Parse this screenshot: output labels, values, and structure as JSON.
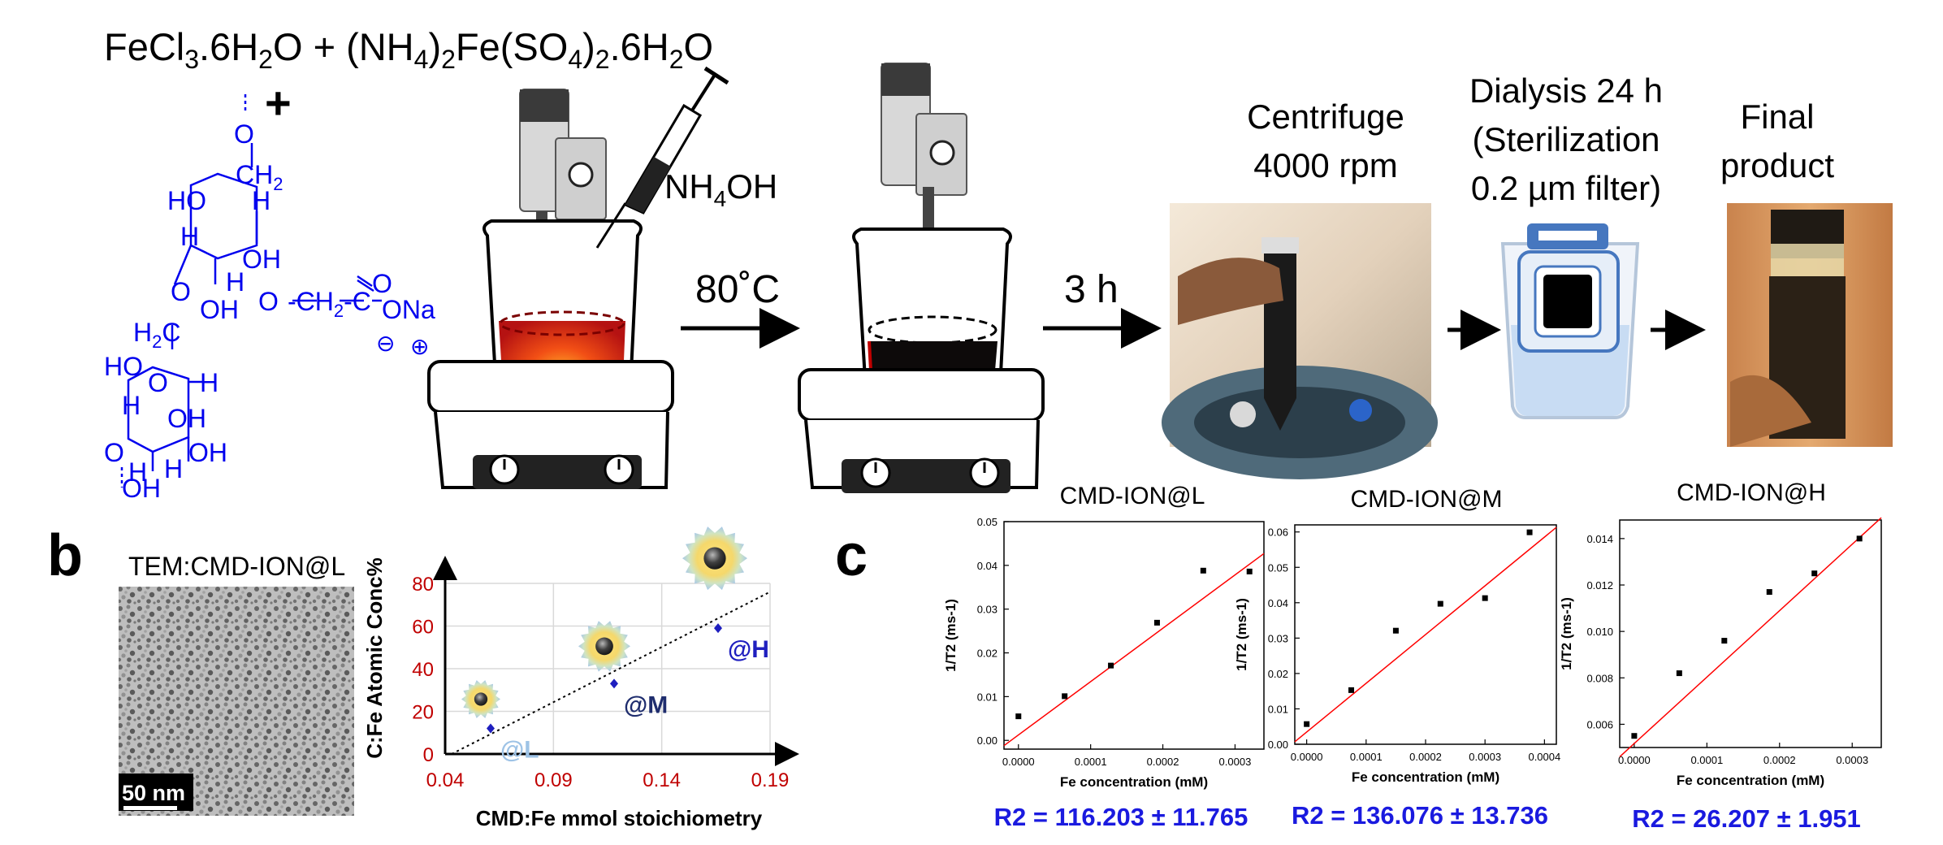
{
  "reagents": {
    "fecl3": "FeCl3.6H2O",
    "plus": "+",
    "mohr_salt": "(NH4)2Fe(SO4)2.6H2O"
  },
  "cmd_structure": {
    "o_top": "O",
    "ch2": "CH2",
    "ho": "HO",
    "h_a": "H",
    "h_b": "H",
    "oh_a": "OH",
    "o_ring": "O",
    "oh_b": "OH",
    "h_c": "H",
    "o_link": "O",
    "ch2_link": "CH2",
    "c_carb": "C",
    "o_dbl": "O",
    "ona": "ONa",
    "minus": "⊖",
    "plusch": "⊕",
    "h2c": "H2C",
    "h_d": "H",
    "ho_b": "HO",
    "o_ring2": "O",
    "h_e": "H",
    "h_f": "H",
    "oh_c": "OH",
    "o_bot": "O",
    "h_g": "H",
    "oh_d": "OH",
    "oh_e": "OH"
  },
  "steps": {
    "nh4oh": "NH4OH",
    "temp": "80˚C",
    "time": "3 h",
    "centrifuge": [
      "Centrifuge",
      "4000 rpm"
    ],
    "dialysis": [
      "Dialysis 24 h",
      "(Sterilization",
      "0.2 µm filter)"
    ],
    "final": [
      "Final",
      "product"
    ]
  },
  "panel_b": {
    "letter": "b",
    "tem_title": "TEM:CMD-ION@L",
    "scale_bar": "50 nm"
  },
  "panel_c": {
    "letter": "c"
  },
  "colors": {
    "blue_struct": "#0000ee",
    "red_axis": "#c00000",
    "fit_red": "#ff0000",
    "r2_blue": "#1a1adf",
    "navy": "#1f2d6e",
    "lightblue": "#9ec3e6"
  },
  "chart_data": [
    {
      "type": "scatter",
      "xlabel": "CMD:Fe mmol stoichiometry",
      "ylabel": "C:Fe Atomic Conc%",
      "xlim": [
        0.04,
        0.19
      ],
      "ylim": [
        0,
        80
      ],
      "x_ticks": [
        "0.04",
        "0.09",
        "0.14",
        "0.19"
      ],
      "y_ticks": [
        "0",
        "20",
        "40",
        "60",
        "80"
      ],
      "points": [
        {
          "x": 0.061,
          "y": 12,
          "label": "@L"
        },
        {
          "x": 0.118,
          "y": 33,
          "label": "@M"
        },
        {
          "x": 0.166,
          "y": 59,
          "label": "@H"
        }
      ],
      "trendline": "dotted"
    },
    {
      "type": "scatter",
      "title": "CMD-ION@L",
      "xlabel": "Fe concentration (mM)",
      "ylabel": "1/T2 (ms-1)",
      "xlim": [
        -2e-05,
        0.00034
      ],
      "ylim": [
        -0.002,
        0.05
      ],
      "x_ticks": [
        "0.0000",
        "0.0001",
        "0.0002",
        "0.0003"
      ],
      "y_ticks": [
        "0.00",
        "0.01",
        "0.02",
        "0.03",
        "0.04",
        "0.05"
      ],
      "x": [
        0.0,
        6.4e-05,
        0.000128,
        0.000192,
        0.000256,
        0.00032
      ],
      "y": [
        0.0055,
        0.0101,
        0.0171,
        0.0269,
        0.0388,
        0.0386
      ],
      "fit": {
        "x": [
          -2e-05,
          0.00034
        ],
        "y": [
          -0.0012,
          0.0427
        ]
      },
      "r2_text": "R2 = 116.203 ± 11.765"
    },
    {
      "type": "scatter",
      "title": "CMD-ION@M",
      "xlabel": "Fe concentration (mM)",
      "ylabel": "1/T2 (ms-1)",
      "xlim": [
        -2e-05,
        0.00042
      ],
      "ylim": [
        0.0,
        0.062
      ],
      "x_ticks": [
        "0.0000",
        "0.0001",
        "0.0002",
        "0.0003",
        "0.0004"
      ],
      "y_ticks": [
        "0.00",
        "0.01",
        "0.02",
        "0.03",
        "0.04",
        "0.05",
        "0.06"
      ],
      "x": [
        0.0,
        7.5e-05,
        0.00015,
        0.000225,
        0.0003,
        0.000375
      ],
      "y": [
        0.0057,
        0.0153,
        0.0321,
        0.0397,
        0.0413,
        0.0599
      ],
      "fit": {
        "x": [
          -2e-05,
          0.00042
        ],
        "y": [
          0.0007,
          0.0613
        ]
      },
      "r2_text": "R2 = 136.076 ± 13.736"
    },
    {
      "type": "scatter",
      "title": "CMD-ION@H",
      "xlabel": "Fe concentration (mM)",
      "ylabel": "1/T2 (ms-1)",
      "xlim": [
        -2e-05,
        0.00034
      ],
      "ylim": [
        0.005,
        0.0148
      ],
      "x_ticks": [
        "0.0000",
        "0.0001",
        "0.0002",
        "0.0003"
      ],
      "y_ticks": [
        "0.006",
        "0.008",
        "0.010",
        "0.012",
        "0.014"
      ],
      "x": [
        0.0,
        6.2e-05,
        0.000124,
        0.000186,
        0.000248,
        0.00031
      ],
      "y": [
        0.0055,
        0.0082,
        0.0096,
        0.0117,
        0.0125,
        0.014
      ],
      "fit": {
        "x": [
          -2e-05,
          0.00034
        ],
        "y": [
          0.0046,
          0.0149
        ]
      },
      "r2_text": "R2 = 26.207 ± 1.951"
    }
  ]
}
